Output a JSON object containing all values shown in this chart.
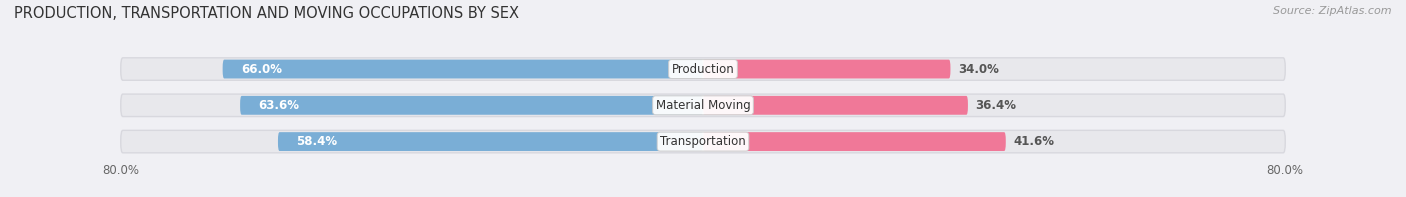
{
  "title": "PRODUCTION, TRANSPORTATION AND MOVING OCCUPATIONS BY SEX",
  "source": "Source: ZipAtlas.com",
  "categories": [
    "Production",
    "Material Moving",
    "Transportation"
  ],
  "male_values": [
    66.0,
    63.6,
    58.4
  ],
  "female_values": [
    34.0,
    36.4,
    41.6
  ],
  "male_color": "#7aaed6",
  "female_color": "#f07898",
  "male_color_light": "#aaccee",
  "female_color_light": "#f8b8cc",
  "bar_bg_color": "#e8e8ec",
  "bar_bg_edge": "#d8d8de",
  "background_color": "#f0f0f4",
  "title_fontsize": 10.5,
  "source_fontsize": 8,
  "bar_label_fontsize": 8.5,
  "category_fontsize": 8.5,
  "legend_fontsize": 9,
  "axis_label_fontsize": 8.5,
  "axis_limit": 80.0
}
